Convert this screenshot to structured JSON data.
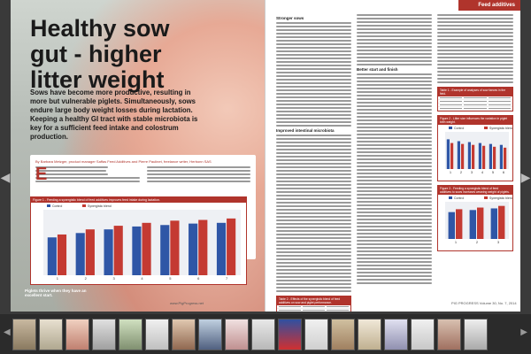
{
  "left_page": {
    "title": "Healthy sow gut - higher litter weight",
    "lead": "Sows have become more productive, resulting in more but vulnerable piglets. Simultaneously, sows endure large body weight losses during lactation. Keeping a healthy GI tract with stable microbiota is key for a sufficient feed intake and colostrum production.",
    "authors": "By Barbara Metzger, product manager Saffas Feed Additives and Pierre Paulinet, freelance writer, Herbonn SAS",
    "dropcap": "E",
    "figure_title": "Figure 1 - Feeding a synergistic blend of feed additives improves feed intake during lactation.",
    "caption": "Piglets thrive when they have an excellent start.",
    "footer": "www.PigProgress.net"
  },
  "right_page": {
    "section_tab": "Feed additives",
    "heading_1": "Stronger sows",
    "heading_2": "Improved intestinal microbiota",
    "heading_3": "Better start and finish",
    "table_1_title": "Table 1 - Example of analyses of sow faeces in the field.",
    "figure_2_title": "Figure 2 - Litter size influences the variation in piglet birth weight.",
    "table_2_title": "Table 2 - Effects of the synergistic blend of feed additives on sow and piglet performance.",
    "figure_3_title": "Figure 3 - Feeding a synergistic blend of feed additives to sows increases weaning weight of piglets.",
    "footer": "PIG PROGRESS Volume 30, No. 7, 2014"
  },
  "colors": {
    "accent": "#b0342c",
    "bar_blue": "#2f56a6",
    "bar_red": "#c43a32"
  },
  "chart_data": [
    {
      "type": "bar",
      "title": "Figure 1 - Feeding a synergistic blend of feed additives improves feed intake during lactation.",
      "categories": [
        "1",
        "2",
        "3",
        "4",
        "5",
        "6",
        "7"
      ],
      "series": [
        {
          "name": "Control",
          "values": [
            5.2,
            5.8,
            6.3,
            6.7,
            6.9,
            7.1,
            7.2
          ]
        },
        {
          "name": "Synergistic blend",
          "values": [
            5.6,
            6.3,
            6.8,
            7.2,
            7.5,
            7.6,
            7.8
          ]
        }
      ],
      "ylim": [
        0,
        9
      ]
    },
    {
      "type": "bar",
      "title": "Figure 2 - Litter size influences the variation in piglet birth weight.",
      "categories": [
        "1",
        "2",
        "3",
        "4",
        "5",
        "6"
      ],
      "series": [
        {
          "name": "Control",
          "values": [
            1.6,
            1.5,
            1.45,
            1.4,
            1.35,
            1.3
          ]
        },
        {
          "name": "Synergistic blend",
          "values": [
            1.4,
            1.35,
            1.3,
            1.25,
            1.2,
            1.15
          ]
        }
      ],
      "ylim": [
        0,
        2
      ]
    },
    {
      "type": "bar",
      "title": "Figure 3 - Feeding a synergistic blend of feed additives to sows increases weaning weight of piglets.",
      "categories": [
        "1",
        "2",
        "3"
      ],
      "series": [
        {
          "name": "Control",
          "values": [
            6.5,
            7.0,
            7.4
          ]
        },
        {
          "name": "Synergistic blend",
          "values": [
            7.2,
            7.6,
            8.0
          ]
        }
      ],
      "ylim": [
        0,
        9
      ]
    }
  ]
}
